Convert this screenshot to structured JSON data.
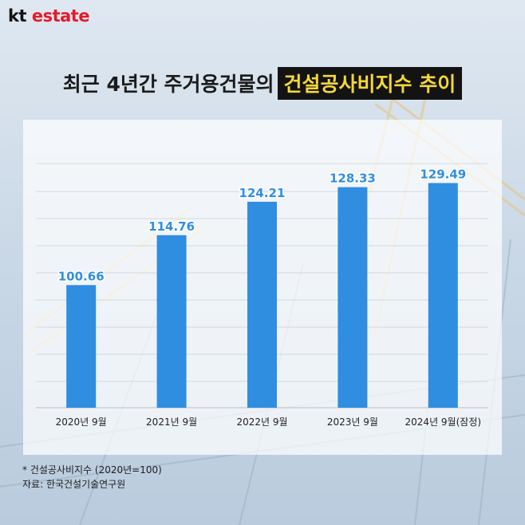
{
  "logo": {
    "kt": "kt",
    "estate": "estate"
  },
  "title": {
    "normal": "최근 4년간 주거용건물의",
    "highlight": "건설공사비지수 추이"
  },
  "chart_data": {
    "type": "bar",
    "categories": [
      "2020년 9월",
      "2021년 9월",
      "2022년 9월",
      "2023년 9월",
      "2024년 9월(잠정)"
    ],
    "values": [
      100.66,
      114.76,
      124.21,
      128.33,
      129.49
    ],
    "value_labels": [
      "100.66",
      "114.76",
      "124.21",
      "128.33",
      "129.49"
    ],
    "ylim": [
      66,
      135
    ],
    "grid": true,
    "bar_color": "#2f8ee0",
    "label_fill": "#2f8ee0",
    "label_stroke": "#ffffff"
  },
  "footnote": {
    "note": "* 건설공사비지수 (2020년=100)",
    "source": "자료: 한국건설기술연구원"
  }
}
